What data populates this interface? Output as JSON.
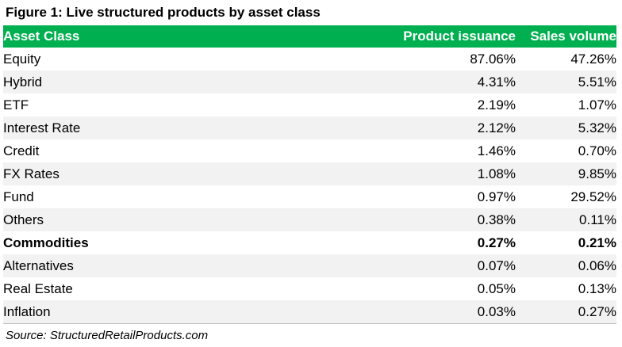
{
  "figure": {
    "title": "Figure 1: Live structured products by asset class",
    "source": "Source: StructuredRetailProducts.com"
  },
  "colors": {
    "header_bg": "#00b050",
    "header_text": "#ffffff",
    "stripe": "#f2f2f2"
  },
  "chart_data": {
    "type": "table",
    "title": "Figure 1: Live structured products by asset class",
    "columns": [
      "Asset Class",
      "Product issuance",
      "Sales volume"
    ],
    "rows": [
      {
        "asset": "Equity",
        "issuance": "87.06%",
        "sales": "47.26%",
        "bold": false
      },
      {
        "asset": "Hybrid",
        "issuance": "4.31%",
        "sales": "5.51%",
        "bold": false
      },
      {
        "asset": "ETF",
        "issuance": "2.19%",
        "sales": "1.07%",
        "bold": false
      },
      {
        "asset": "Interest Rate",
        "issuance": "2.12%",
        "sales": "5.32%",
        "bold": false
      },
      {
        "asset": "Credit",
        "issuance": "1.46%",
        "sales": "0.70%",
        "bold": false
      },
      {
        "asset": "FX Rates",
        "issuance": "1.08%",
        "sales": "9.85%",
        "bold": false
      },
      {
        "asset": "Fund",
        "issuance": "0.97%",
        "sales": "29.52%",
        "bold": false
      },
      {
        "asset": "Others",
        "issuance": "0.38%",
        "sales": "0.11%",
        "bold": false
      },
      {
        "asset": "Commodities",
        "issuance": "0.27%",
        "sales": "0.21%",
        "bold": true
      },
      {
        "asset": "Alternatives",
        "issuance": "0.07%",
        "sales": "0.06%",
        "bold": false
      },
      {
        "asset": "Real Estate",
        "issuance": "0.05%",
        "sales": "0.13%",
        "bold": false
      },
      {
        "asset": "Inflation",
        "issuance": "0.03%",
        "sales": "0.27%",
        "bold": false
      }
    ]
  }
}
